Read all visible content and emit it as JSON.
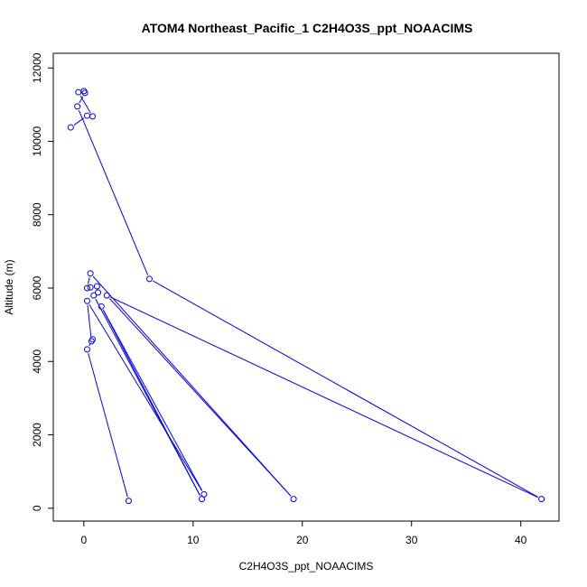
{
  "chart_data": {
    "type": "scatter",
    "title": "ATOM4 Northeast_Pacific_1 C2H4O3S_ppt_NOAACIMS",
    "xlabel": "C2H4O3S_ppt_NOAACIMS",
    "ylabel": "Altitude (m)",
    "xlim": [
      -2.8,
      43.5
    ],
    "ylim": [
      -350,
      12400
    ],
    "x_ticks": [
      0,
      10,
      20,
      30,
      40
    ],
    "y_ticks": [
      0,
      2000,
      4000,
      6000,
      8000,
      10000,
      12000
    ],
    "grid": false,
    "series_color": "#0000ff",
    "series": [
      {
        "points": [
          {
            "x": -1.2,
            "y": 10380
          },
          {
            "x": 0.3,
            "y": 10700
          },
          {
            "x": 0.8,
            "y": 10680
          },
          {
            "x": -0.5,
            "y": 11340
          },
          {
            "x": 0.0,
            "y": 11370
          },
          {
            "x": 0.1,
            "y": 11320
          },
          {
            "x": -0.6,
            "y": 10950
          },
          {
            "x": 6.0,
            "y": 6250
          },
          {
            "x": 41.9,
            "y": 250
          },
          {
            "x": 2.1,
            "y": 5800
          },
          {
            "x": 19.2,
            "y": 250
          },
          {
            "x": 0.6,
            "y": 6400
          },
          {
            "x": 0.3,
            "y": 6000
          },
          {
            "x": 0.6,
            "y": 6020
          },
          {
            "x": 1.2,
            "y": 6050
          },
          {
            "x": 1.3,
            "y": 5880
          },
          {
            "x": 0.9,
            "y": 5800
          },
          {
            "x": 10.8,
            "y": 250
          },
          {
            "x": 1.6,
            "y": 5500
          },
          {
            "x": 11.0,
            "y": 380
          },
          {
            "x": 0.3,
            "y": 5650
          },
          {
            "x": 0.7,
            "y": 4550
          },
          {
            "x": 0.8,
            "y": 4600
          },
          {
            "x": 0.3,
            "y": 4330
          },
          {
            "x": 4.1,
            "y": 200
          }
        ]
      }
    ]
  }
}
